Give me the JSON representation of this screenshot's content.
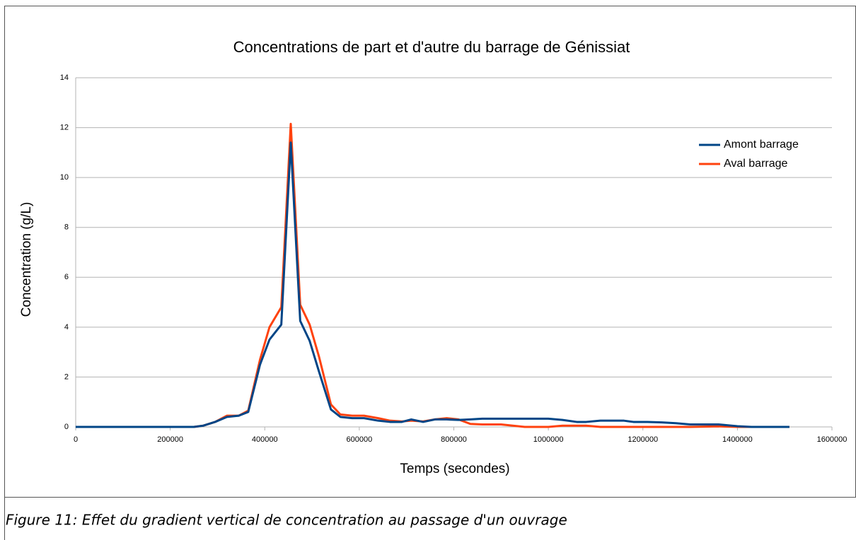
{
  "chart_data": {
    "type": "line",
    "title": "Concentrations de part et d'autre du barrage de Génissiat",
    "x_label": "Temps (secondes)",
    "y_label": "Concentration (g/L)",
    "x": [
      0,
      50000,
      100000,
      150000,
      200000,
      250000,
      270000,
      295000,
      320000,
      345000,
      365000,
      390000,
      410000,
      435000,
      455000,
      475000,
      495000,
      515000,
      540000,
      560000,
      585000,
      610000,
      640000,
      665000,
      690000,
      710000,
      735000,
      760000,
      785000,
      810000,
      835000,
      860000,
      900000,
      950000,
      1000000,
      1030000,
      1060000,
      1080000,
      1110000,
      1160000,
      1180000,
      1210000,
      1240000,
      1270000,
      1300000,
      1360000,
      1400000,
      1430000,
      1510000
    ],
    "series": [
      {
        "name": "Amont barrage",
        "color": "#004586",
        "values": [
          0,
          0,
          0,
          0,
          0,
          0,
          0.05,
          0.2,
          0.4,
          0.45,
          0.6,
          2.5,
          3.5,
          4.1,
          11.4,
          4.25,
          3.45,
          2.2,
          0.7,
          0.4,
          0.35,
          0.35,
          0.25,
          0.2,
          0.2,
          0.3,
          0.2,
          0.3,
          0.3,
          0.28,
          0.3,
          0.33,
          0.33,
          0.33,
          0.33,
          0.28,
          0.2,
          0.2,
          0.25,
          0.25,
          0.2,
          0.2,
          0.18,
          0.15,
          0.1,
          0.1,
          0.03,
          0,
          0
        ]
      },
      {
        "name": "Aval barrage",
        "color": "#ff420e",
        "values": [
          0,
          0,
          0,
          0,
          0,
          0,
          0.05,
          0.2,
          0.45,
          0.45,
          0.65,
          2.7,
          4.0,
          4.8,
          12.15,
          4.9,
          4.1,
          2.8,
          0.9,
          0.5,
          0.45,
          0.45,
          0.35,
          0.25,
          0.22,
          0.25,
          0.22,
          0.3,
          0.35,
          0.3,
          0.12,
          0.1,
          0.1,
          0,
          0,
          0.05,
          0.05,
          0.05,
          0,
          0,
          0,
          0,
          0,
          0,
          0,
          0.02,
          0,
          0,
          0
        ]
      }
    ],
    "xlim": [
      0,
      1600000
    ],
    "xticks": [
      0,
      200000,
      400000,
      600000,
      800000,
      1000000,
      1200000,
      1400000,
      1600000
    ],
    "ylim": [
      0,
      14
    ],
    "yticks": [
      0,
      2,
      4,
      6,
      8,
      10,
      12,
      14
    ],
    "grid": true,
    "legend": "right"
  },
  "caption": "Figure 11: Effet du gradient vertical de concentration au passage d'un ouvrage"
}
